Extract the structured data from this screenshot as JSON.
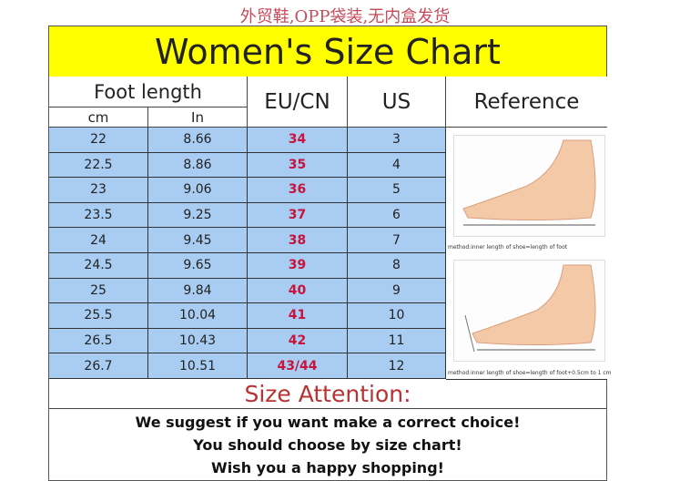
{
  "top_note": "外贸鞋,OPP袋装,无内盒发货",
  "title": "Women's Size Chart",
  "headers": {
    "foot_length": "Foot length",
    "cm": "cm",
    "in": "In",
    "eu": "EU/CN",
    "us": "US",
    "reference": "Reference"
  },
  "rows": [
    {
      "cm": "22",
      "in": "8.66",
      "eu": "34",
      "us": "3"
    },
    {
      "cm": "22.5",
      "in": "8.86",
      "eu": "35",
      "us": "4"
    },
    {
      "cm": "23",
      "in": "9.06",
      "eu": "36",
      "us": "5"
    },
    {
      "cm": "23.5",
      "in": "9.25",
      "eu": "37",
      "us": "6"
    },
    {
      "cm": "24",
      "in": "9.45",
      "eu": "38",
      "us": "7"
    },
    {
      "cm": "24.5",
      "in": "9.65",
      "eu": "39",
      "us": "8"
    },
    {
      "cm": "25",
      "in": "9.84",
      "eu": "40",
      "us": "9"
    },
    {
      "cm": "25.5",
      "in": "10.04",
      "eu": "41",
      "us": "10"
    },
    {
      "cm": "26.5",
      "in": "10.43",
      "eu": "42",
      "us": "11"
    },
    {
      "cm": "26.7",
      "in": "10.51",
      "eu": "43/44",
      "us": "12"
    }
  ],
  "reference": {
    "caption1": "method:inner length of shoe=length of foot",
    "caption2": "method:inner length of shoe=length of foot+0.5cm to 1 cm"
  },
  "attention": "Size Attention:",
  "messages": [
    "We suggest if you want make a correct choice!",
    "You should choose by size chart!",
    "Wish you a happy shopping!"
  ],
  "colors": {
    "title_bg": "#ffff00",
    "cell_bg": "#a9cdf2",
    "eu_text": "#c8143c",
    "attention_text": "#b83232"
  }
}
